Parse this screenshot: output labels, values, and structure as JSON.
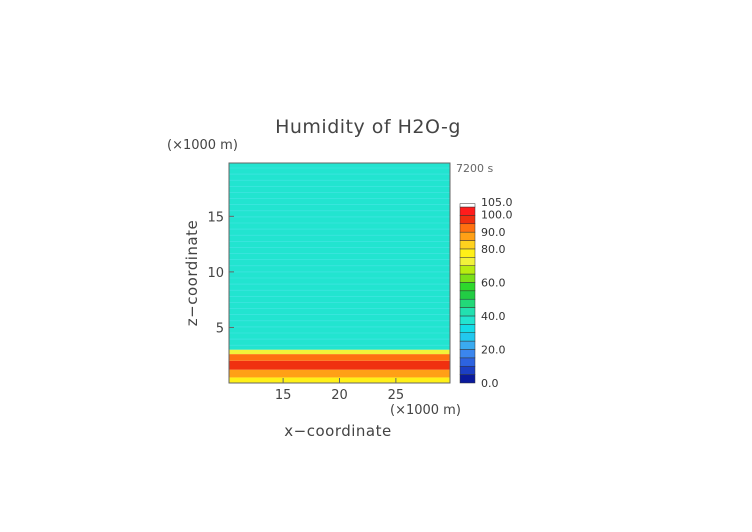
{
  "chart_data": {
    "type": "heatmap",
    "title": "Humidity of H2O-g",
    "time_label": "7200 s",
    "xlabel": "x−coordinate",
    "ylabel": "z−coordinate",
    "x_unit": "(×1000 m)",
    "y_unit": "(×1000 m)",
    "xlim": [
      10.2,
      29.8
    ],
    "ylim": [
      0,
      19.8
    ],
    "x_ticks": [
      15,
      20,
      25
    ],
    "x_tick_labels": [
      "15",
      "20",
      "25"
    ],
    "y_ticks": [
      5,
      10,
      15
    ],
    "y_tick_labels": [
      "5",
      "10",
      "15"
    ],
    "colorbar": {
      "levels": [
        0,
        5,
        10,
        15,
        20,
        25,
        30,
        35,
        40,
        45,
        50,
        55,
        60,
        65,
        70,
        75,
        80,
        85,
        90,
        95,
        100,
        105
      ],
      "colors": [
        "#0a1a9c",
        "#1c3fc4",
        "#2d63e0",
        "#3b86ee",
        "#3aaaf0",
        "#22c8ee",
        "#14dce8",
        "#22e4d0",
        "#22e0b0",
        "#22d878",
        "#22cc44",
        "#2ed82c",
        "#7ae018",
        "#b8ec10",
        "#f2f23a",
        "#fff018",
        "#ffd21e",
        "#ffa016",
        "#ff7010",
        "#f03010",
        "#ff1c1c",
        "#ffffff"
      ],
      "tick_values": [
        0,
        20,
        40,
        60,
        80,
        90,
        100,
        105
      ],
      "tick_labels": [
        "0.0",
        "20.0",
        "40.0",
        "60.0",
        "80.0",
        "90.0",
        "100.0",
        "105.0"
      ]
    },
    "field_bands": [
      {
        "z": [
          0,
          0.5
        ],
        "value": 78
      },
      {
        "z": [
          0.5,
          1.2
        ],
        "value": 88
      },
      {
        "z": [
          1.2,
          2.0
        ],
        "value": 96
      },
      {
        "z": [
          2.0,
          2.6
        ],
        "value": 91
      },
      {
        "z": [
          2.6,
          3.0
        ],
        "value": 72
      },
      {
        "z": [
          3.0,
          19.8
        ],
        "value": 37
      }
    ],
    "grid": false
  }
}
